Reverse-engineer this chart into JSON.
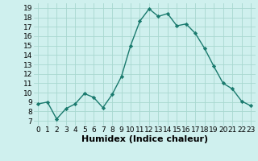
{
  "x": [
    0,
    1,
    2,
    3,
    4,
    5,
    6,
    7,
    8,
    9,
    10,
    11,
    12,
    13,
    14,
    15,
    16,
    17,
    18,
    19,
    20,
    21,
    22,
    23
  ],
  "y": [
    8.8,
    9.0,
    7.2,
    8.3,
    8.8,
    9.9,
    9.5,
    8.4,
    9.8,
    11.7,
    15.0,
    17.6,
    18.9,
    18.1,
    18.4,
    17.1,
    17.3,
    16.3,
    14.7,
    12.8,
    11.0,
    10.4,
    9.1,
    8.6
  ],
  "line_color": "#1a7a6e",
  "marker": "D",
  "marker_size": 2.2,
  "bg_color": "#cff0ee",
  "grid_color": "#a8d8d0",
  "xlabel": "Humidex (Indice chaleur)",
  "xlim": [
    -0.5,
    23.5
  ],
  "ylim": [
    6.5,
    19.5
  ],
  "yticks": [
    7,
    8,
    9,
    10,
    11,
    12,
    13,
    14,
    15,
    16,
    17,
    18,
    19
  ],
  "xticks": [
    0,
    1,
    2,
    3,
    4,
    5,
    6,
    7,
    8,
    9,
    10,
    11,
    12,
    13,
    14,
    15,
    16,
    17,
    18,
    19,
    20,
    21,
    22,
    23
  ],
  "tick_fontsize": 6.5,
  "xlabel_fontsize": 8,
  "label_color": "#000000",
  "linewidth": 1.0
}
